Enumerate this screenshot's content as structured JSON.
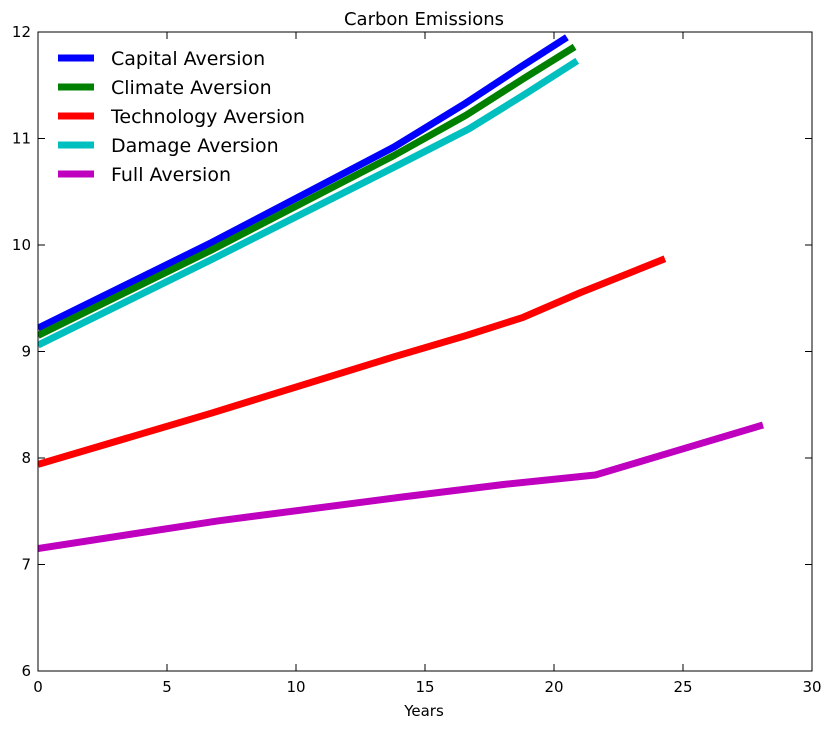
{
  "chart_data": {
    "type": "line",
    "title": "Carbon Emissions",
    "xlabel": "Years",
    "ylabel": "",
    "xlim": [
      0,
      30
    ],
    "ylim": [
      6,
      12
    ],
    "xticks": [
      0,
      5,
      10,
      15,
      20,
      25,
      30
    ],
    "yticks": [
      6,
      7,
      8,
      9,
      10,
      11,
      12
    ],
    "grid": false,
    "legend_position": "top-left",
    "series": [
      {
        "name": "Capital Aversion",
        "color": "#0000ff",
        "x": [
          0,
          6.7,
          13.8,
          16.5,
          18.7,
          20.5
        ],
        "y": [
          9.22,
          10.02,
          10.92,
          11.32,
          11.67,
          11.95
        ]
      },
      {
        "name": "Climate Aversion",
        "color": "#008000",
        "x": [
          0,
          6.7,
          13.8,
          16.6,
          18.8,
          20.8
        ],
        "y": [
          9.15,
          9.95,
          10.84,
          11.22,
          11.56,
          11.86
        ]
      },
      {
        "name": "Technology Aversion",
        "color": "#ff0000",
        "x": [
          0,
          6.7,
          13.8,
          16.6,
          18.8,
          21.0,
          24.3
        ],
        "y": [
          7.94,
          8.42,
          8.95,
          9.15,
          9.32,
          9.55,
          9.87
        ]
      },
      {
        "name": "Damage Aversion",
        "color": "#00bfbf",
        "x": [
          0,
          6.7,
          13.8,
          16.7,
          18.9,
          20.9
        ],
        "y": [
          9.06,
          9.86,
          10.73,
          11.09,
          11.42,
          11.73
        ]
      },
      {
        "name": "Full Aversion",
        "color": "#bf00bf",
        "x": [
          0,
          7.0,
          14.0,
          18.0,
          21.6,
          24.5,
          28.1
        ],
        "y": [
          7.15,
          7.41,
          7.63,
          7.75,
          7.84,
          8.05,
          8.31
        ]
      }
    ]
  }
}
